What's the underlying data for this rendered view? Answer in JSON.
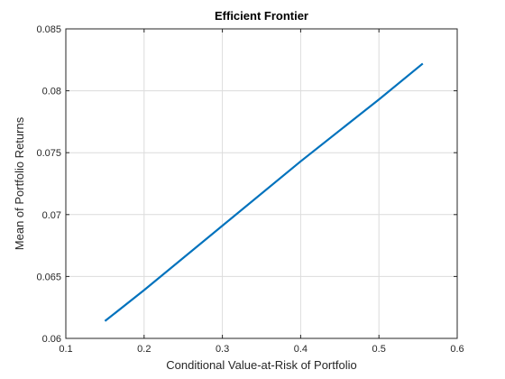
{
  "chart_data": {
    "type": "line",
    "title": "Efficient  Frontier",
    "xlabel": "Conditional Value-at-Risk of Portfolio",
    "ylabel": "Mean of Portfolio Returns",
    "xlim": [
      0.1,
      0.6
    ],
    "ylim": [
      0.06,
      0.085
    ],
    "xticks": [
      0.1,
      0.2,
      0.3,
      0.4,
      0.5,
      0.6
    ],
    "xtick_labels": [
      "0.1",
      "0.2",
      "0.3",
      "0.4",
      "0.5",
      "0.6"
    ],
    "yticks": [
      0.06,
      0.065,
      0.07,
      0.075,
      0.08,
      0.085
    ],
    "ytick_labels": [
      "0.06",
      "0.065",
      "0.07",
      "0.075",
      "0.08",
      "0.085"
    ],
    "grid": true,
    "series": [
      {
        "color": "#0072bd",
        "x": [
          0.15,
          0.2,
          0.3,
          0.4,
          0.5,
          0.556
        ],
        "y": [
          0.0614,
          0.0639,
          0.0691,
          0.0743,
          0.0793,
          0.0822
        ]
      }
    ]
  }
}
